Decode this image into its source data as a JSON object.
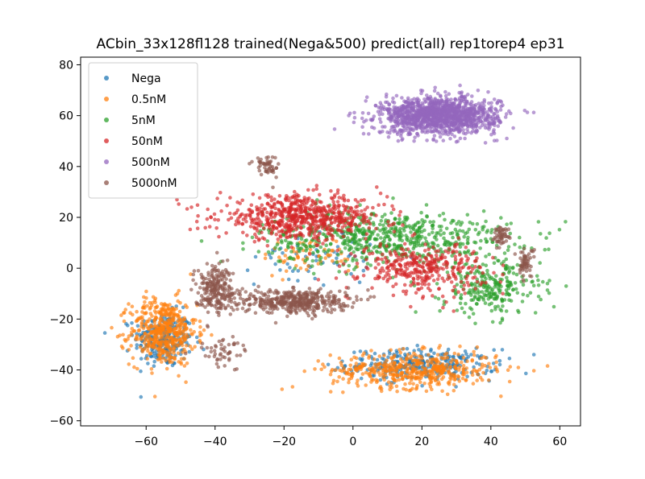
{
  "chart_data": {
    "type": "scatter",
    "title": "ACbin_33x128fl128 trained(Nega&500) predict(all) rep1torep4 ep31",
    "xlabel": "",
    "ylabel": "",
    "xlim": [
      -79,
      66
    ],
    "ylim": [
      -62,
      83
    ],
    "xticks": [
      -60,
      -40,
      -20,
      0,
      20,
      40,
      60
    ],
    "yticks": [
      -60,
      -40,
      -20,
      0,
      20,
      40,
      60,
      80
    ],
    "grid": false,
    "legend_position": "top-left",
    "series": [
      {
        "name": "Nega",
        "color": "#1f77b4",
        "clusters": [
          {
            "center": [
              -55,
              -28
            ],
            "spread": [
              7,
              9
            ],
            "n": 260
          },
          {
            "center": [
              20,
              -38
            ],
            "spread": [
              18,
              5
            ],
            "n": 300
          },
          {
            "center": [
              -10,
              5
            ],
            "spread": [
              15,
              10
            ],
            "n": 60
          }
        ]
      },
      {
        "name": "0.5nM",
        "color": "#ff7f0e",
        "clusters": [
          {
            "center": [
              -55,
              -25
            ],
            "spread": [
              8,
              11
            ],
            "n": 480
          },
          {
            "center": [
              18,
              -40
            ],
            "spread": [
              20,
              6
            ],
            "n": 480
          },
          {
            "center": [
              -12,
              5
            ],
            "spread": [
              12,
              6
            ],
            "n": 60
          }
        ]
      },
      {
        "name": "5nM",
        "color": "#2ca02c",
        "clusters": [
          {
            "center": [
              10,
              12
            ],
            "spread": [
              30,
              9
            ],
            "n": 650
          },
          {
            "center": [
              40,
              -8
            ],
            "spread": [
              12,
              9
            ],
            "n": 250
          }
        ]
      },
      {
        "name": "50nM",
        "color": "#d62728",
        "clusters": [
          {
            "center": [
              -15,
              20
            ],
            "spread": [
              20,
              7
            ],
            "n": 650
          },
          {
            "center": [
              20,
              0
            ],
            "spread": [
              15,
              8
            ],
            "n": 350
          }
        ]
      },
      {
        "name": "500nM",
        "color": "#9467bd",
        "clusters": [
          {
            "center": [
              25,
              60
            ],
            "spread": [
              14,
              6
            ],
            "n": 1300
          }
        ]
      },
      {
        "name": "5000nM",
        "color": "#8c564b",
        "clusters": [
          {
            "center": [
              -17,
              -13
            ],
            "spread": [
              13,
              4
            ],
            "n": 420
          },
          {
            "center": [
              -40,
              -8
            ],
            "spread": [
              5,
              8
            ],
            "n": 220
          },
          {
            "center": [
              -25,
              40
            ],
            "spread": [
              3,
              4
            ],
            "n": 50
          },
          {
            "center": [
              43,
              13
            ],
            "spread": [
              2,
              3
            ],
            "n": 50
          },
          {
            "center": [
              50,
              2
            ],
            "spread": [
              2,
              5
            ],
            "n": 60
          },
          {
            "center": [
              -38,
              -33
            ],
            "spread": [
              6,
              5
            ],
            "n": 50
          }
        ]
      }
    ]
  }
}
